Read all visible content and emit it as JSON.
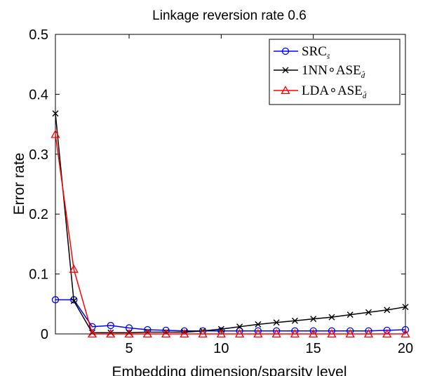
{
  "chart_data": {
    "type": "line",
    "title": "Linkage reversion rate 0.6",
    "xlabel": "Embedding dimension/sparsity level",
    "ylabel": "Error rate",
    "xlim": [
      1,
      20
    ],
    "ylim": [
      0,
      0.5
    ],
    "xticks": [
      5,
      10,
      15,
      20
    ],
    "yticks": [
      0,
      0.1,
      0.2,
      0.3,
      0.4,
      0.5
    ],
    "ytick_labels": [
      "0",
      "0.1",
      "0.2",
      "0.3",
      "0.4",
      "0.5"
    ],
    "grid": false,
    "legend_position": "top-right",
    "x": [
      1,
      2,
      3,
      4,
      5,
      6,
      7,
      8,
      9,
      10,
      11,
      12,
      13,
      14,
      15,
      16,
      17,
      18,
      19,
      20
    ],
    "series": [
      {
        "name": "SRC",
        "subscript": "ŝ",
        "color": "#0000ff",
        "marker": "circle",
        "values": [
          0.057,
          0.057,
          0.012,
          0.014,
          0.01,
          0.007,
          0.006,
          0.005,
          0.005,
          0.005,
          0.005,
          0.005,
          0.005,
          0.005,
          0.005,
          0.005,
          0.005,
          0.005,
          0.006,
          0.007
        ]
      },
      {
        "name": "1NN∘ASE",
        "subscript": "d̂",
        "color": "#000000",
        "marker": "x",
        "values": [
          0.368,
          0.055,
          0.002,
          0.002,
          0.002,
          0.003,
          0.003,
          0.003,
          0.005,
          0.008,
          0.012,
          0.016,
          0.019,
          0.022,
          0.025,
          0.028,
          0.032,
          0.036,
          0.04,
          0.045
        ]
      },
      {
        "name": "LDA∘ASE",
        "subscript": "d̂",
        "color": "#ff0000",
        "marker": "triangle",
        "values": [
          0.333,
          0.108,
          0.0,
          0.0,
          0.0,
          0.0,
          0.0,
          0.0,
          0.0,
          0.0,
          0.0,
          0.0,
          0.0,
          0.0,
          0.0,
          0.0,
          0.0,
          0.0,
          0.0,
          0.0
        ]
      }
    ]
  }
}
